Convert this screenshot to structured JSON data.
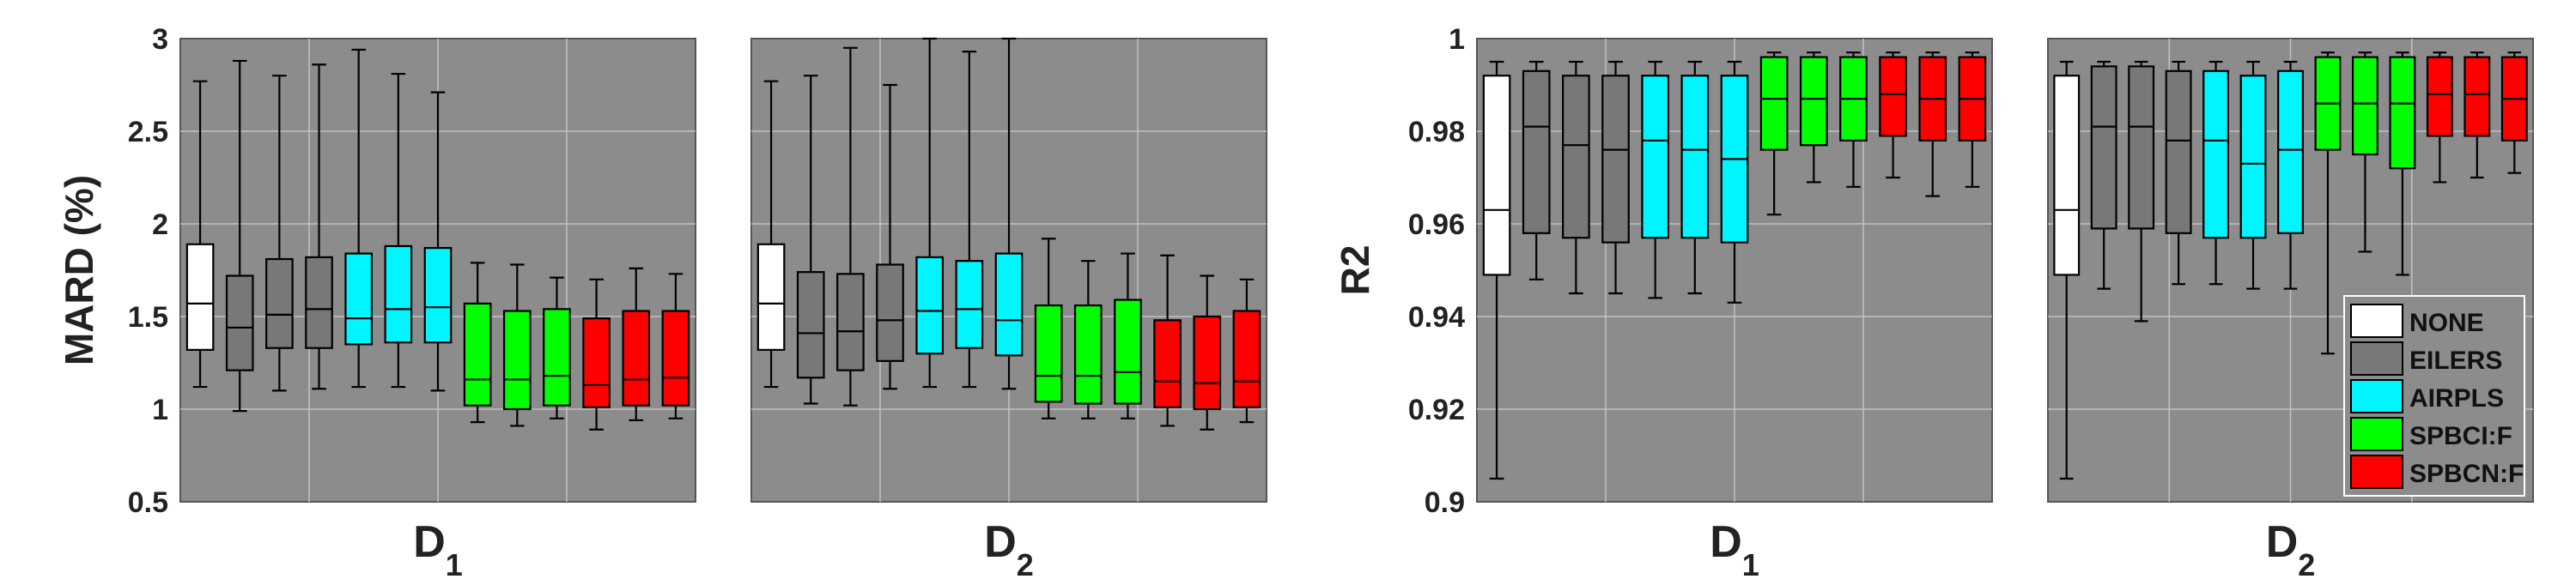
{
  "method_colors": {
    "NONE": "#ffffff",
    "EILERS": "#787878",
    "AIRPLS": "#00f5ff",
    "SPBCI:F": "#00ff00",
    "SPBCN:F": "#ff0000"
  },
  "colors": {
    "panel_bg": "#8c8c8c",
    "grid": "#c2c2c2",
    "whisker": "#000000"
  },
  "legend": {
    "placement": "bottom-right of last panel",
    "items": [
      {
        "label": "NONE",
        "color": "#ffffff"
      },
      {
        "label": "EILERS",
        "color": "#787878"
      },
      {
        "label": "AIRPLS",
        "color": "#00f5ff"
      },
      {
        "label": "SPBCI:F",
        "color": "#00ff00"
      },
      {
        "label": "SPBCN:F",
        "color": "#ff0000"
      }
    ]
  },
  "chart_data": [
    {
      "type": "boxplot",
      "ylabel": "MARD (%)",
      "xlabel": "D",
      "xlabel_sub": "1",
      "ylim": [
        0.5,
        3
      ],
      "yticks": [
        "0.5",
        "1",
        "1.5",
        "2",
        "2.5",
        "3"
      ],
      "grid": true,
      "boxes": [
        {
          "method": "NONE",
          "whislo": 1.12,
          "q1": 1.32,
          "med": 1.57,
          "q3": 1.89,
          "whishi": 2.77
        },
        {
          "method": "EILERS",
          "whislo": 0.99,
          "q1": 1.21,
          "med": 1.44,
          "q3": 1.72,
          "whishi": 2.88
        },
        {
          "method": "EILERS",
          "whislo": 1.1,
          "q1": 1.33,
          "med": 1.51,
          "q3": 1.81,
          "whishi": 2.8
        },
        {
          "method": "EILERS",
          "whislo": 1.11,
          "q1": 1.33,
          "med": 1.54,
          "q3": 1.82,
          "whishi": 2.86
        },
        {
          "method": "AIRPLS",
          "whislo": 1.12,
          "q1": 1.35,
          "med": 1.49,
          "q3": 1.84,
          "whishi": 2.94
        },
        {
          "method": "AIRPLS",
          "whislo": 1.12,
          "q1": 1.36,
          "med": 1.54,
          "q3": 1.88,
          "whishi": 2.81
        },
        {
          "method": "AIRPLS",
          "whislo": 1.1,
          "q1": 1.36,
          "med": 1.55,
          "q3": 1.87,
          "whishi": 2.71
        },
        {
          "method": "SPBCI:F",
          "whislo": 0.93,
          "q1": 1.02,
          "med": 1.16,
          "q3": 1.57,
          "whishi": 1.79
        },
        {
          "method": "SPBCI:F",
          "whislo": 0.91,
          "q1": 1.0,
          "med": 1.16,
          "q3": 1.53,
          "whishi": 1.78
        },
        {
          "method": "SPBCI:F",
          "whislo": 0.95,
          "q1": 1.02,
          "med": 1.18,
          "q3": 1.54,
          "whishi": 1.71
        },
        {
          "method": "SPBCN:F",
          "whislo": 0.89,
          "q1": 1.01,
          "med": 1.13,
          "q3": 1.49,
          "whishi": 1.7
        },
        {
          "method": "SPBCN:F",
          "whislo": 0.94,
          "q1": 1.02,
          "med": 1.16,
          "q3": 1.53,
          "whishi": 1.76
        },
        {
          "method": "SPBCN:F",
          "whislo": 0.95,
          "q1": 1.02,
          "med": 1.17,
          "q3": 1.53,
          "whishi": 1.73
        }
      ]
    },
    {
      "type": "boxplot",
      "ylabel": "",
      "xlabel": "D",
      "xlabel_sub": "2",
      "ylim": [
        0.5,
        3
      ],
      "yticks": [],
      "grid": true,
      "boxes": [
        {
          "method": "NONE",
          "whislo": 1.12,
          "q1": 1.32,
          "med": 1.57,
          "q3": 1.89,
          "whishi": 2.77
        },
        {
          "method": "EILERS",
          "whislo": 1.03,
          "q1": 1.17,
          "med": 1.41,
          "q3": 1.74,
          "whishi": 2.8
        },
        {
          "method": "EILERS",
          "whislo": 1.02,
          "q1": 1.21,
          "med": 1.42,
          "q3": 1.73,
          "whishi": 2.95
        },
        {
          "method": "EILERS",
          "whislo": 1.11,
          "q1": 1.26,
          "med": 1.48,
          "q3": 1.78,
          "whishi": 2.75
        },
        {
          "method": "AIRPLS",
          "whislo": 1.12,
          "q1": 1.3,
          "med": 1.53,
          "q3": 1.82,
          "whishi": 3.0
        },
        {
          "method": "AIRPLS",
          "whislo": 1.12,
          "q1": 1.33,
          "med": 1.54,
          "q3": 1.8,
          "whishi": 2.93
        },
        {
          "method": "AIRPLS",
          "whislo": 1.11,
          "q1": 1.29,
          "med": 1.48,
          "q3": 1.84,
          "whishi": 3.0
        },
        {
          "method": "SPBCI:F",
          "whislo": 0.95,
          "q1": 1.04,
          "med": 1.18,
          "q3": 1.56,
          "whishi": 1.92
        },
        {
          "method": "SPBCI:F",
          "whislo": 0.95,
          "q1": 1.03,
          "med": 1.18,
          "q3": 1.56,
          "whishi": 1.8
        },
        {
          "method": "SPBCI:F",
          "whislo": 0.95,
          "q1": 1.03,
          "med": 1.2,
          "q3": 1.59,
          "whishi": 1.84
        },
        {
          "method": "SPBCN:F",
          "whislo": 0.91,
          "q1": 1.01,
          "med": 1.15,
          "q3": 1.48,
          "whishi": 1.83
        },
        {
          "method": "SPBCN:F",
          "whislo": 0.89,
          "q1": 1.0,
          "med": 1.14,
          "q3": 1.5,
          "whishi": 1.72
        },
        {
          "method": "SPBCN:F",
          "whislo": 0.93,
          "q1": 1.01,
          "med": 1.15,
          "q3": 1.53,
          "whishi": 1.7
        }
      ]
    },
    {
      "type": "boxplot",
      "ylabel": "R2",
      "xlabel": "D",
      "xlabel_sub": "1",
      "ylim": [
        0.9,
        1
      ],
      "yticks": [
        "0.9",
        "0.92",
        "0.94",
        "0.96",
        "0.98",
        "1"
      ],
      "grid": true,
      "boxes": [
        {
          "method": "NONE",
          "whislo": 0.905,
          "q1": 0.949,
          "med": 0.963,
          "q3": 0.992,
          "whishi": 0.995
        },
        {
          "method": "EILERS",
          "whislo": 0.948,
          "q1": 0.958,
          "med": 0.981,
          "q3": 0.993,
          "whishi": 0.995
        },
        {
          "method": "EILERS",
          "whislo": 0.945,
          "q1": 0.957,
          "med": 0.977,
          "q3": 0.992,
          "whishi": 0.995
        },
        {
          "method": "EILERS",
          "whislo": 0.945,
          "q1": 0.956,
          "med": 0.976,
          "q3": 0.992,
          "whishi": 0.995
        },
        {
          "method": "AIRPLS",
          "whislo": 0.944,
          "q1": 0.957,
          "med": 0.978,
          "q3": 0.992,
          "whishi": 0.995
        },
        {
          "method": "AIRPLS",
          "whislo": 0.945,
          "q1": 0.957,
          "med": 0.976,
          "q3": 0.992,
          "whishi": 0.995
        },
        {
          "method": "AIRPLS",
          "whislo": 0.943,
          "q1": 0.956,
          "med": 0.974,
          "q3": 0.992,
          "whishi": 0.995
        },
        {
          "method": "SPBCI:F",
          "whislo": 0.962,
          "q1": 0.976,
          "med": 0.987,
          "q3": 0.996,
          "whishi": 0.997
        },
        {
          "method": "SPBCI:F",
          "whislo": 0.969,
          "q1": 0.977,
          "med": 0.987,
          "q3": 0.996,
          "whishi": 0.997
        },
        {
          "method": "SPBCI:F",
          "whislo": 0.968,
          "q1": 0.978,
          "med": 0.987,
          "q3": 0.996,
          "whishi": 0.997
        },
        {
          "method": "SPBCN:F",
          "whislo": 0.97,
          "q1": 0.979,
          "med": 0.988,
          "q3": 0.996,
          "whishi": 0.997
        },
        {
          "method": "SPBCN:F",
          "whislo": 0.966,
          "q1": 0.978,
          "med": 0.987,
          "q3": 0.996,
          "whishi": 0.997
        },
        {
          "method": "SPBCN:F",
          "whislo": 0.968,
          "q1": 0.978,
          "med": 0.987,
          "q3": 0.996,
          "whishi": 0.997
        }
      ]
    },
    {
      "type": "boxplot",
      "ylabel": "",
      "xlabel": "D",
      "xlabel_sub": "2",
      "ylim": [
        0.9,
        1
      ],
      "yticks": [],
      "grid": true,
      "boxes": [
        {
          "method": "NONE",
          "whislo": 0.905,
          "q1": 0.949,
          "med": 0.963,
          "q3": 0.992,
          "whishi": 0.995
        },
        {
          "method": "EILERS",
          "whislo": 0.946,
          "q1": 0.959,
          "med": 0.981,
          "q3": 0.994,
          "whishi": 0.995
        },
        {
          "method": "EILERS",
          "whislo": 0.939,
          "q1": 0.959,
          "med": 0.981,
          "q3": 0.994,
          "whishi": 0.995
        },
        {
          "method": "EILERS",
          "whislo": 0.947,
          "q1": 0.958,
          "med": 0.978,
          "q3": 0.993,
          "whishi": 0.995
        },
        {
          "method": "AIRPLS",
          "whislo": 0.947,
          "q1": 0.957,
          "med": 0.978,
          "q3": 0.993,
          "whishi": 0.995
        },
        {
          "method": "AIRPLS",
          "whislo": 0.946,
          "q1": 0.957,
          "med": 0.973,
          "q3": 0.992,
          "whishi": 0.995
        },
        {
          "method": "AIRPLS",
          "whislo": 0.946,
          "q1": 0.958,
          "med": 0.976,
          "q3": 0.993,
          "whishi": 0.995
        },
        {
          "method": "SPBCI:F",
          "whislo": 0.932,
          "q1": 0.976,
          "med": 0.986,
          "q3": 0.996,
          "whishi": 0.997
        },
        {
          "method": "SPBCI:F",
          "whislo": 0.954,
          "q1": 0.975,
          "med": 0.986,
          "q3": 0.996,
          "whishi": 0.997
        },
        {
          "method": "SPBCI:F",
          "whislo": 0.949,
          "q1": 0.972,
          "med": 0.986,
          "q3": 0.996,
          "whishi": 0.997
        },
        {
          "method": "SPBCN:F",
          "whislo": 0.969,
          "q1": 0.979,
          "med": 0.988,
          "q3": 0.996,
          "whishi": 0.997
        },
        {
          "method": "SPBCN:F",
          "whislo": 0.97,
          "q1": 0.979,
          "med": 0.988,
          "q3": 0.996,
          "whishi": 0.997
        },
        {
          "method": "SPBCN:F",
          "whislo": 0.971,
          "q1": 0.978,
          "med": 0.987,
          "q3": 0.996,
          "whishi": 0.997
        }
      ]
    }
  ]
}
